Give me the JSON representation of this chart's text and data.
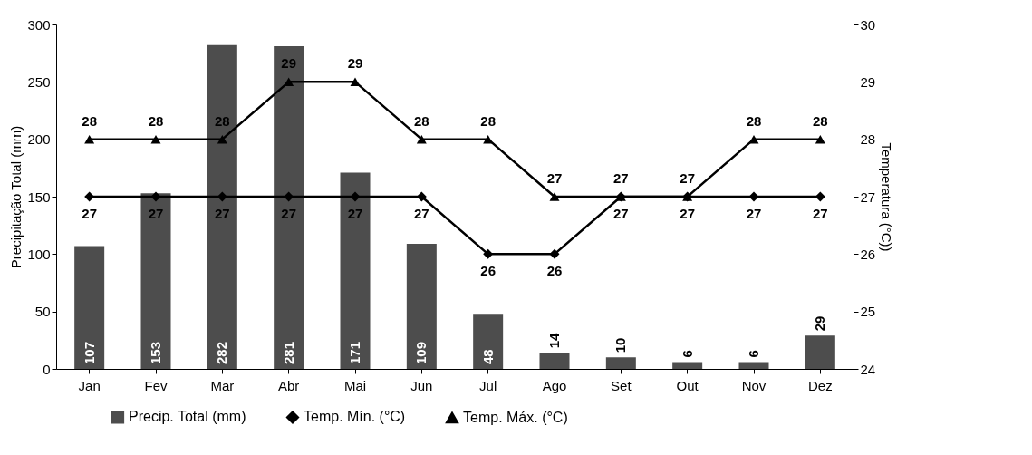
{
  "chart_data": {
    "type": "bar",
    "categories": [
      "Jan",
      "Fev",
      "Mar",
      "Abr",
      "Mai",
      "Jun",
      "Jul",
      "Ago",
      "Set",
      "Out",
      "Nov",
      "Dez"
    ],
    "series": [
      {
        "name": "Precip. Total (mm)",
        "color": "#4d4d4d",
        "values": [
          107,
          153,
          282,
          281,
          171,
          109,
          48,
          14,
          10,
          6,
          6,
          29
        ]
      },
      {
        "name": "Temp. Mín. (°C)",
        "type": "line",
        "axis": "y2",
        "marker": "diamond",
        "color": "#000000",
        "values": [
          27,
          27,
          27,
          27,
          27,
          27,
          26,
          26,
          27,
          27,
          27,
          27
        ]
      },
      {
        "name": "Temp. Máx. (°C)",
        "type": "line",
        "axis": "y2",
        "marker": "triangle",
        "color": "#000000",
        "values": [
          28,
          28,
          28,
          29,
          29,
          28,
          28,
          27,
          27,
          27,
          28,
          28
        ]
      }
    ],
    "ylabel": "Precipitação Total (mm)",
    "y2label": "Temperatura (°C))",
    "ylim": [
      0,
      300
    ],
    "yticks": [
      0,
      50,
      100,
      150,
      200,
      250,
      300
    ],
    "y2lim": [
      24,
      30
    ],
    "y2ticks": [
      24,
      25,
      26,
      27,
      28,
      29,
      30
    ],
    "data_labels": true,
    "legend": "bottom",
    "line_style": "solid"
  }
}
